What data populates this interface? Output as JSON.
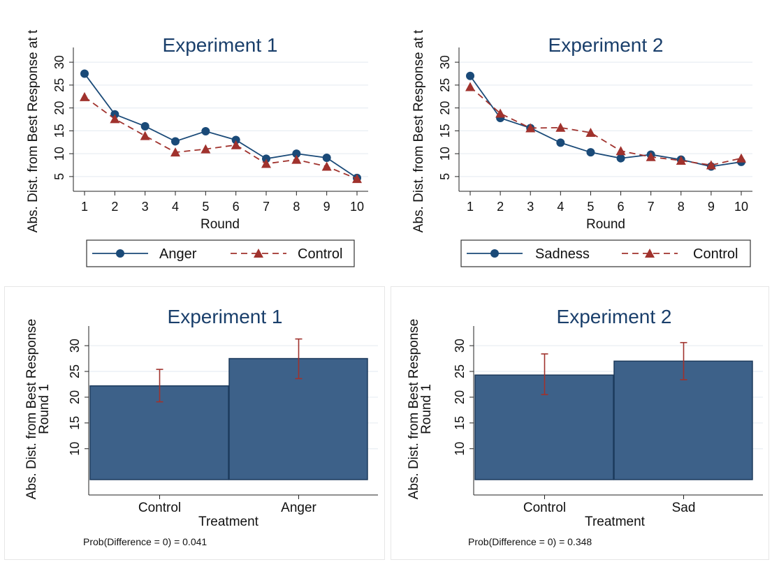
{
  "colors": {
    "treatment_line": "#1a4a78",
    "control_line": "#a0322d",
    "bar_fill": "#3d6189",
    "bar_stroke": "#1d3a5c",
    "error_bar": "#a0322d",
    "grid": "#e8eef3",
    "title": "#1a3f6b"
  },
  "chart_data": [
    {
      "type": "line",
      "title": "Experiment 1",
      "xlabel": "Round",
      "ylabel": "Abs. Dist. from Best Response at t",
      "x": [
        1,
        2,
        3,
        4,
        5,
        6,
        7,
        8,
        9,
        10
      ],
      "xticks": [
        "1",
        "2",
        "3",
        "4",
        "5",
        "6",
        "7",
        "8",
        "9",
        "10"
      ],
      "ylim": [
        3,
        32
      ],
      "yticks": [
        "5",
        "10",
        "15",
        "20",
        "25",
        "30"
      ],
      "grid": true,
      "legend": "bottom",
      "series": [
        {
          "name": "Anger",
          "marker": "circle",
          "style": "solid",
          "values": [
            27.5,
            18.6,
            16.0,
            12.7,
            14.9,
            13.0,
            8.9,
            10.0,
            9.1,
            4.7
          ]
        },
        {
          "name": "Control",
          "marker": "triangle",
          "style": "dashed",
          "values": [
            22.4,
            17.6,
            13.9,
            10.3,
            11.0,
            11.9,
            7.8,
            8.7,
            7.2,
            4.5
          ]
        }
      ]
    },
    {
      "type": "line",
      "title": "Experiment 2",
      "xlabel": "Round",
      "ylabel": "Abs. Dist. from Best Response at t",
      "x": [
        1,
        2,
        3,
        4,
        5,
        6,
        7,
        8,
        9,
        10
      ],
      "xticks": [
        "1",
        "2",
        "3",
        "4",
        "5",
        "6",
        "7",
        "8",
        "9",
        "10"
      ],
      "ylim": [
        3,
        32
      ],
      "yticks": [
        "5",
        "10",
        "15",
        "20",
        "25",
        "30"
      ],
      "grid": true,
      "legend": "bottom",
      "series": [
        {
          "name": "Sadness",
          "marker": "circle",
          "style": "solid",
          "values": [
            27.0,
            17.8,
            15.6,
            12.4,
            10.3,
            9.0,
            9.8,
            8.7,
            7.2,
            8.2
          ]
        },
        {
          "name": "Control",
          "marker": "triangle",
          "style": "dashed",
          "values": [
            24.6,
            18.8,
            15.6,
            15.7,
            14.6,
            10.6,
            9.3,
            8.5,
            7.5,
            9.0
          ]
        }
      ]
    },
    {
      "type": "bar",
      "title": "Experiment 1",
      "xlabel": "Treatment",
      "ylabel": "Abs. Dist. from Best Response",
      "ylabel2": "Round 1",
      "categories": [
        "Control",
        "Anger"
      ],
      "values": [
        22.2,
        27.5
      ],
      "error_low": [
        19.1,
        23.6
      ],
      "error_high": [
        25.4,
        31.3
      ],
      "ylim": [
        4,
        33
      ],
      "yticks": [
        "10",
        "15",
        "20",
        "25",
        "30"
      ],
      "grid": true,
      "note": "Prob(Difference =  0) = 0.041"
    },
    {
      "type": "bar",
      "title": "Experiment 2",
      "xlabel": "Treatment",
      "ylabel": "Abs. Dist. from Best Response",
      "ylabel2": "Round 1",
      "categories": [
        "Control",
        "Sad"
      ],
      "values": [
        24.3,
        27.0
      ],
      "error_low": [
        20.5,
        23.4
      ],
      "error_high": [
        28.4,
        30.6
      ],
      "ylim": [
        4,
        33
      ],
      "yticks": [
        "10",
        "15",
        "20",
        "25",
        "30"
      ],
      "grid": true,
      "note": "Prob(Difference =  0) =  0.348"
    }
  ]
}
